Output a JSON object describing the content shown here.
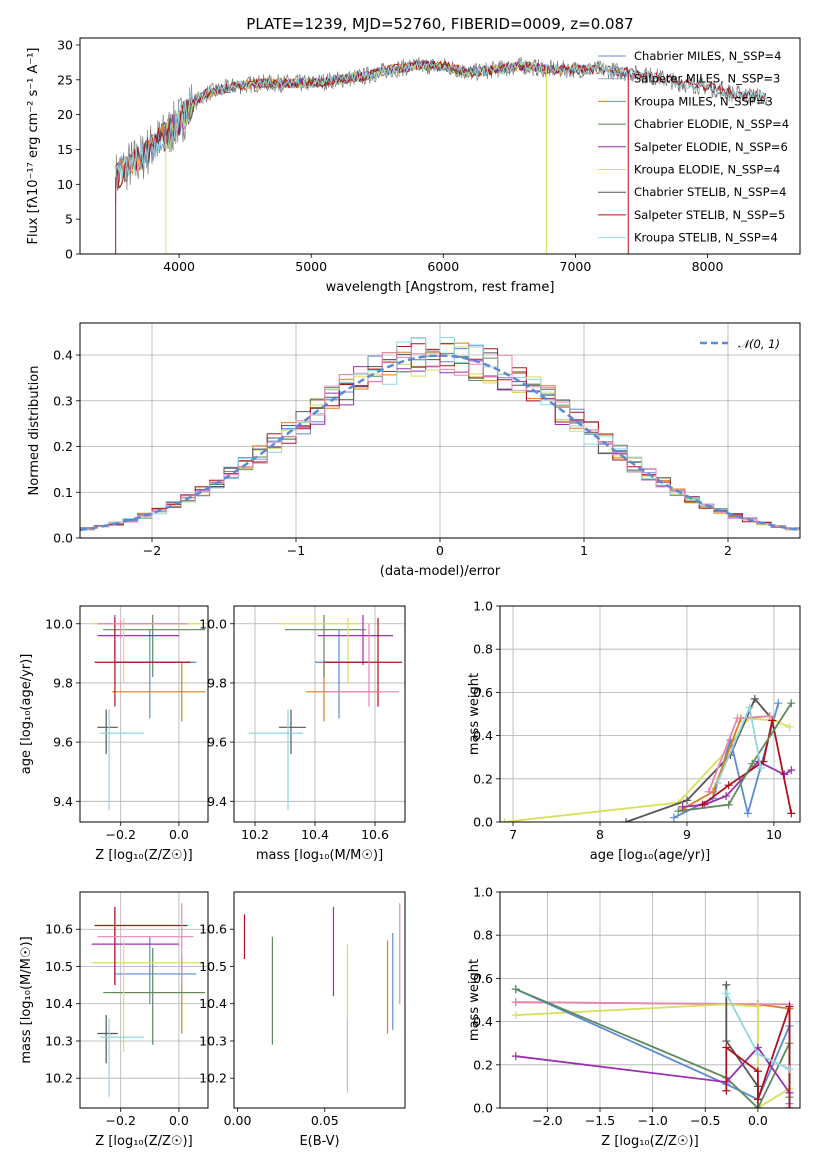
{
  "figure_title": "PLATE=1239, MJD=52760, FIBERID=0009, z=0.087",
  "colors": {
    "chabrier_miles": "#5b8bd6",
    "salpeter_miles": "#9aa3c4",
    "kroupa_miles": "#e07b1a",
    "chabrier_elodie": "#5e8a5e",
    "salpeter_elodie": "#9b2fb0",
    "kroupa_elodie": "#d8e05a",
    "chabrier_stelib": "#555555",
    "salpeter_stelib": "#b0101b",
    "kroupa_stelib": "#8fd8e0",
    "pink": "#e887b4",
    "normal_curve": "#5b8bd6"
  },
  "chart_data": [
    {
      "id": "spectrum",
      "type": "line",
      "title": "PLATE=1239, MJD=52760, FIBERID=0009, z=0.087",
      "xlabel": "wavelength [Angstrom, rest frame]",
      "ylabel": "Flux [fλ10⁻¹⁷ erg cm⁻² s⁻¹ A⁻¹]",
      "xlim": [
        3250,
        8700
      ],
      "ylim": [
        0,
        31
      ],
      "xticks": [
        "4000",
        "5000",
        "6000",
        "7000",
        "8000"
      ],
      "yticks": [
        "0",
        "5",
        "10",
        "15",
        "20",
        "25",
        "30"
      ],
      "grid": false,
      "legend_position": "top-right",
      "continuum": {
        "x": [
          3520,
          3600,
          3700,
          3800,
          3900,
          4000,
          4100,
          4200,
          4400,
          4600,
          4800,
          5000,
          5200,
          5400,
          5600,
          5800,
          6000,
          6200,
          6400,
          6600,
          6800,
          7000,
          7200,
          7400,
          7600,
          7800,
          8000,
          8200,
          8450
        ],
        "y": [
          11,
          12.5,
          13.5,
          15.5,
          17,
          19,
          21.5,
          23,
          24,
          24.5,
          24.5,
          24.5,
          25,
          25.5,
          26.5,
          27,
          27,
          26,
          26.5,
          27,
          26.5,
          26.5,
          26.5,
          26,
          25.5,
          24.5,
          24,
          23,
          22.5
        ]
      },
      "legend": [
        "Chabrier MILES, N_SSP=4",
        "Salpeter MILES, N_SSP=3",
        "Kroupa MILES, N_SSP=3",
        "Chabrier ELODIE, N_SSP=4",
        "Salpeter ELODIE, N_SSP=6",
        "Kroupa ELODIE, N_SSP=4",
        "Chabrier STELIB, N_SSP=4",
        "Salpeter STELIB, N_SSP=5",
        "Kroupa STELIB, N_SSP=4"
      ]
    },
    {
      "id": "residuals",
      "type": "line",
      "xlabel": "(data-model)/error",
      "ylabel": "Normed distribution",
      "xlim": [
        -2.5,
        2.5
      ],
      "ylim": [
        0,
        0.47
      ],
      "xticks": [
        "−2",
        "−1",
        "0",
        "1",
        "2"
      ],
      "yticks": [
        "0.0",
        "0.1",
        "0.2",
        "0.3",
        "0.4"
      ],
      "grid": true,
      "legend_position": "top-right",
      "legend": [
        "𝒩(0, 1)"
      ]
    },
    {
      "id": "age_vs_Z",
      "type": "scatter",
      "xlabel": "Z [log₁₀(Z/Z☉)]",
      "ylabel": "age  [log₁₀(age/yr)]",
      "xlim": [
        -0.34,
        0.1
      ],
      "ylim": [
        9.33,
        10.06
      ],
      "xticks": [
        "−0.2",
        "0.0"
      ],
      "yticks": [
        "9.4",
        "9.6",
        "9.8",
        "10.0"
      ],
      "grid": true,
      "points": [
        {
          "c": "chabrier_miles",
          "x": -0.1,
          "y": 9.87,
          "xe": [
            -0.22,
            0.06
          ],
          "ye": [
            9.68,
            9.98
          ]
        },
        {
          "c": "kroupa_miles",
          "x": 0.01,
          "y": 9.77,
          "xe": [
            -0.23,
            0.09
          ],
          "ye": [
            9.67,
            9.87
          ]
        },
        {
          "c": "chabrier_elodie",
          "x": -0.09,
          "y": 9.98,
          "xe": [
            -0.26,
            0.09
          ],
          "ye": [
            9.82,
            10.03
          ]
        },
        {
          "c": "salpeter_elodie",
          "x": -0.22,
          "y": 9.96,
          "xe": [
            -0.28,
            0.0
          ],
          "ye": [
            9.86,
            10.03
          ]
        },
        {
          "c": "kroupa_elodie",
          "x": -0.19,
          "y": 10.0,
          "xe": [
            -0.3,
            0.08
          ],
          "ye": [
            9.8,
            10.02
          ]
        },
        {
          "c": "chabrier_stelib",
          "x": -0.25,
          "y": 9.65,
          "xe": [
            -0.28,
            -0.21
          ],
          "ye": [
            9.56,
            9.71
          ]
        },
        {
          "c": "salpeter_stelib",
          "x": -0.22,
          "y": 9.87,
          "xe": [
            -0.29,
            0.04
          ],
          "ye": [
            9.72,
            10.02
          ]
        },
        {
          "c": "kroupa_stelib",
          "x": -0.24,
          "y": 9.63,
          "xe": [
            -0.27,
            -0.12
          ],
          "ye": [
            9.37,
            9.71
          ]
        },
        {
          "c": "pink",
          "x": -0.2,
          "y": 10.0,
          "xe": [
            -0.28,
            0.03
          ],
          "ye": [
            9.95,
            10.01
          ]
        }
      ]
    },
    {
      "id": "age_vs_mass",
      "type": "scatter",
      "xlabel": "mass [log₁₀(M/M☉)]",
      "ylabel": "",
      "xlim": [
        10.13,
        10.7
      ],
      "ylim": [
        9.33,
        10.06
      ],
      "xticks": [
        "10.2",
        "10.4",
        "10.6"
      ],
      "yticks": [
        "9.4",
        "9.6",
        "9.8",
        "10.0"
      ],
      "grid": true,
      "points": [
        {
          "c": "chabrier_miles",
          "x": 10.48,
          "y": 9.87,
          "xe": [
            10.4,
            10.58
          ],
          "ye": [
            9.68,
            9.98
          ]
        },
        {
          "c": "kroupa_miles",
          "x": 10.43,
          "y": 9.77,
          "xe": [
            10.37,
            10.62
          ],
          "ye": [
            9.67,
            9.87
          ]
        },
        {
          "c": "chabrier_elodie",
          "x": 10.43,
          "y": 9.98,
          "xe": [
            10.3,
            10.57
          ],
          "ye": [
            9.82,
            10.03
          ]
        },
        {
          "c": "salpeter_elodie",
          "x": 10.56,
          "y": 9.96,
          "xe": [
            10.41,
            10.66
          ],
          "ye": [
            9.86,
            10.03
          ]
        },
        {
          "c": "kroupa_elodie",
          "x": 10.51,
          "y": 10.0,
          "xe": [
            10.28,
            10.55
          ],
          "ye": [
            9.8,
            10.02
          ]
        },
        {
          "c": "chabrier_stelib",
          "x": 10.32,
          "y": 9.65,
          "xe": [
            10.28,
            10.37
          ],
          "ye": [
            9.56,
            9.71
          ]
        },
        {
          "c": "salpeter_stelib",
          "x": 10.61,
          "y": 9.87,
          "xe": [
            10.43,
            10.69
          ],
          "ye": [
            9.72,
            10.02
          ]
        },
        {
          "c": "kroupa_stelib",
          "x": 10.31,
          "y": 9.63,
          "xe": [
            10.18,
            10.36
          ],
          "ye": [
            9.37,
            9.71
          ]
        },
        {
          "c": "pink",
          "x": 10.58,
          "y": 9.77,
          "xe": [
            10.43,
            10.68
          ],
          "ye": [
            9.72,
            10.0
          ]
        }
      ]
    },
    {
      "id": "mass_weight_vs_age",
      "type": "line",
      "xlabel": "age  [log₁₀(age/yr)]",
      "ylabel": "mass weight",
      "xlim": [
        6.85,
        10.3
      ],
      "ylim": [
        0,
        1
      ],
      "xticks": [
        "7",
        "8",
        "9",
        "10"
      ],
      "yticks": [
        "0.0",
        "0.2",
        "0.4",
        "0.6",
        "0.8",
        "1.0"
      ],
      "grid": true,
      "series": [
        {
          "c": "kroupa_elodie",
          "x": [
            6.9,
            8.9,
            9.48,
            9.7,
            10.0,
            10.18
          ],
          "y": [
            0.0,
            0.09,
            0.34,
            0.48,
            0.47,
            0.44
          ]
        },
        {
          "c": "chabrier_stelib",
          "x": [
            8.3,
            9.0,
            9.5,
            9.78,
            9.95
          ],
          "y": [
            0.0,
            0.1,
            0.31,
            0.57,
            0.49
          ]
        },
        {
          "c": "chabrier_miles",
          "x": [
            8.85,
            9.3,
            9.5,
            9.7,
            10.05
          ],
          "y": [
            0.02,
            0.11,
            0.38,
            0.04,
            0.55
          ]
        },
        {
          "c": "kroupa_miles",
          "x": [
            8.95,
            9.3,
            9.62,
            9.95
          ],
          "y": [
            0.06,
            0.14,
            0.48,
            0.49
          ]
        },
        {
          "c": "salpeter_elodie",
          "x": [
            8.95,
            9.2,
            9.45,
            9.82,
            10.12,
            10.2
          ],
          "y": [
            0.07,
            0.08,
            0.12,
            0.28,
            0.22,
            0.24
          ]
        },
        {
          "c": "salpeter_stelib",
          "x": [
            9.18,
            9.48,
            9.88,
            9.98,
            10.2
          ],
          "y": [
            0.08,
            0.17,
            0.28,
            0.47,
            0.04
          ]
        },
        {
          "c": "chabrier_elodie",
          "x": [
            8.9,
            9.48,
            9.75,
            10.2
          ],
          "y": [
            0.05,
            0.08,
            0.27,
            0.55
          ]
        },
        {
          "c": "pink",
          "x": [
            9.25,
            9.58,
            9.95
          ],
          "y": [
            0.14,
            0.48,
            0.49
          ]
        },
        {
          "c": "kroupa_stelib",
          "x": [
            9.35,
            9.72,
            9.85
          ],
          "y": [
            0.18,
            0.53,
            0.25
          ]
        }
      ]
    },
    {
      "id": "mass_vs_Z",
      "type": "scatter",
      "xlabel": "Z [log₁₀(Z/Z☉)]",
      "ylabel": "mass [log₁₀(M/M☉)]",
      "xlim": [
        -0.34,
        0.1
      ],
      "ylim": [
        10.12,
        10.7
      ],
      "xticks": [
        "−0.2",
        "0.0"
      ],
      "yticks": [
        "10.2",
        "10.3",
        "10.4",
        "10.5",
        "10.6"
      ],
      "grid": true,
      "points": [
        {
          "c": "chabrier_miles",
          "x": -0.1,
          "y": 10.48,
          "xe": [
            -0.22,
            0.06
          ],
          "ye": [
            10.4,
            10.58
          ]
        },
        {
          "c": "kroupa_miles",
          "x": 0.01,
          "y": 10.43,
          "xe": [
            -0.23,
            0.09
          ],
          "ye": [
            10.32,
            10.53
          ]
        },
        {
          "c": "chabrier_elodie",
          "x": -0.09,
          "y": 10.43,
          "xe": [
            -0.26,
            0.09
          ],
          "ye": [
            10.29,
            10.55
          ]
        },
        {
          "c": "salpeter_elodie",
          "x": -0.22,
          "y": 10.56,
          "xe": [
            -0.3,
            0.0
          ],
          "ye": [
            10.45,
            10.66
          ]
        },
        {
          "c": "kroupa_elodie",
          "x": -0.19,
          "y": 10.51,
          "xe": [
            -0.3,
            0.08
          ],
          "ye": [
            10.27,
            10.57
          ]
        },
        {
          "c": "chabrier_stelib",
          "x": -0.25,
          "y": 10.32,
          "xe": [
            -0.28,
            -0.21
          ],
          "ye": [
            10.24,
            10.37
          ]
        },
        {
          "c": "salpeter_stelib",
          "x": -0.22,
          "y": 10.61,
          "xe": [
            -0.29,
            0.03
          ],
          "ye": [
            10.45,
            10.66
          ]
        },
        {
          "c": "kroupa_stelib",
          "x": -0.24,
          "y": 10.31,
          "xe": [
            -0.27,
            -0.12
          ],
          "ye": [
            10.15,
            10.36
          ]
        },
        {
          "c": "pink",
          "x": 0.01,
          "y": 10.58,
          "xe": [
            -0.28,
            0.05
          ],
          "ye": [
            10.45,
            10.67
          ]
        }
      ]
    },
    {
      "id": "mass_vs_ebv",
      "type": "scatter",
      "xlabel": "E(B-V)",
      "ylabel": "",
      "xlim": [
        -0.002,
        0.096
      ],
      "ylim": [
        10.12,
        10.7
      ],
      "xticks": [
        "0.00",
        "0.05"
      ],
      "yticks": [
        "10.2",
        "10.3",
        "10.4",
        "10.5",
        "10.6"
      ],
      "grid": false,
      "points": [
        {
          "c": "salpeter_stelib",
          "x": 0.004,
          "ye": [
            10.52,
            10.64
          ]
        },
        {
          "c": "chabrier_elodie",
          "x": 0.02,
          "ye": [
            10.29,
            10.58
          ]
        },
        {
          "c": "salpeter_elodie",
          "x": 0.055,
          "ye": [
            10.42,
            10.66
          ]
        },
        {
          "c": "kroupa_elodie",
          "x": 0.063,
          "ye": [
            10.3,
            10.56
          ]
        },
        {
          "c": "kroupa_stelib",
          "x": 0.063,
          "ye": [
            10.16,
            10.36
          ]
        },
        {
          "c": "kroupa_miles",
          "x": 0.086,
          "ye": [
            10.32,
            10.57
          ]
        },
        {
          "c": "chabrier_miles",
          "x": 0.089,
          "ye": [
            10.33,
            10.59
          ]
        },
        {
          "c": "pink",
          "x": 0.093,
          "ye": [
            10.4,
            10.67
          ]
        }
      ]
    },
    {
      "id": "mass_weight_vs_Z",
      "type": "line",
      "xlabel": "Z [log₁₀(Z/Z☉)]",
      "ylabel": "mass weight",
      "xlim": [
        -2.45,
        0.4
      ],
      "ylim": [
        0,
        1
      ],
      "xticks": [
        "−2.0",
        "−1.5",
        "−1.0",
        "−0.5",
        "0.0"
      ],
      "yticks": [
        "0.0",
        "0.2",
        "0.4",
        "0.6",
        "0.8",
        "1.0"
      ],
      "grid": true,
      "series": [
        {
          "c": "kroupa_miles",
          "x": [
            -2.3,
            0.0,
            0.3,
            0.3
          ],
          "y": [
            0.49,
            0.48,
            0.46,
            0.0
          ]
        },
        {
          "c": "pink",
          "x": [
            -2.3,
            0.3,
            0.3
          ],
          "y": [
            0.49,
            0.48,
            0.0
          ]
        },
        {
          "c": "kroupa_elodie",
          "x": [
            -2.3,
            -0.3,
            0.0,
            0.0,
            0.3
          ],
          "y": [
            0.43,
            0.48,
            0.47,
            0.0,
            0.09
          ]
        },
        {
          "c": "chabrier_miles",
          "x": [
            -2.3,
            -0.3,
            0.0,
            0.3,
            0.3
          ],
          "y": [
            0.55,
            0.11,
            0.04,
            0.38,
            0.02
          ]
        },
        {
          "c": "chabrier_elodie",
          "x": [
            -2.3,
            -0.3,
            0.0,
            0.3,
            0.3
          ],
          "y": [
            0.55,
            0.14,
            0.0,
            0.3,
            0.05
          ]
        },
        {
          "c": "chabrier_stelib",
          "x": [
            -0.3,
            -0.3,
            0.0,
            0.0
          ],
          "y": [
            0.57,
            0.31,
            0.1,
            0.0
          ]
        },
        {
          "c": "salpeter_elodie",
          "x": [
            -2.3,
            -0.3,
            0.0,
            0.3
          ],
          "y": [
            0.24,
            0.12,
            0.28,
            0.07
          ]
        },
        {
          "c": "salpeter_stelib",
          "x": [
            -0.3,
            -0.3,
            0.0,
            0.0,
            0.3,
            0.3
          ],
          "y": [
            0.08,
            0.28,
            0.17,
            0.04,
            0.47,
            0.0
          ]
        },
        {
          "c": "kroupa_stelib",
          "x": [
            -0.3,
            0.0,
            0.3
          ],
          "y": [
            0.53,
            0.25,
            0.18
          ]
        }
      ]
    }
  ]
}
